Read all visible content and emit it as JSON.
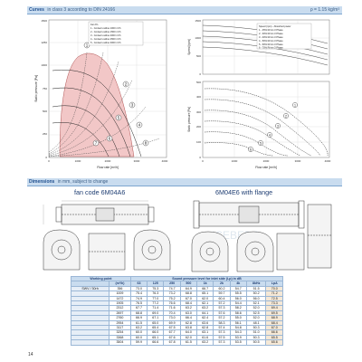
{
  "header": {
    "title": "Curves",
    "subtitle": "in class 3 according to DIN 24166",
    "right": "ρ = 1.15 kg/m³"
  },
  "left_chart": {
    "legend": [
      "Fan 8 L",
      "1 - Contact outline 1000 m³/h",
      "2 - Contact outline 1500 m³/h",
      "3 - Contact outline 2000 m³/h",
      "4 - Contact outline 2500 m³/h",
      "5 - Contact outline 3000 m³/h"
    ],
    "ylabel": "Static pressure [Pa]",
    "xlabel": "Flow rate [m³/h]",
    "xticks": [
      "0",
      "1000",
      "2000",
      "3000",
      "4000"
    ],
    "yticks": [
      "0",
      "250",
      "500",
      "750",
      "1000",
      "1250",
      "1500"
    ],
    "circles": [
      "1",
      "2",
      "3",
      "4",
      "5",
      "6",
      "7",
      "8"
    ]
  },
  "right_chart": {
    "legend": [
      "Speed (rpm) - Absorbed power",
      "1 - 25% R/min 3 Phase",
      "2 - 30% R/min 3 Phase",
      "3 - 40% R/min 3 Phase",
      "4 - 50% R/min 3 Phase",
      "5 - 60% R/min 3 Phase",
      "6 - 70% R/min 3 Phase"
    ],
    "ylabel_top": "Speed [rpm]",
    "ylabel_bottom": "Static pressure [Pa]",
    "xlabel": "Flow rate [m³/h]",
    "xticks": [
      "0",
      "1000",
      "2000",
      "3000",
      "4000"
    ],
    "yticks_top": [
      "0",
      "500",
      "1000",
      "1500"
    ],
    "yticks_bottom": [
      "0",
      "100",
      "200",
      "300",
      "400",
      "500"
    ],
    "curve_labels": [
      "1",
      "2",
      "3",
      "4",
      "5",
      "6"
    ]
  },
  "dimensions": {
    "title": "Dimensions",
    "subtitle": "in mm, subject to change",
    "fan_left": "fan code 6M04A6",
    "fan_right": "6M04E6 with flange",
    "watermark": "ICEBERG"
  },
  "table": {
    "head1": [
      "Working point",
      "Sound pressure level for inlet side (Lp) in dB"
    ],
    "head2": [
      "",
      "(m³/h)",
      "63",
      "125",
      "250",
      "500",
      "1k",
      "2k",
      "4k",
      "8kHz",
      "LpA"
    ],
    "rows": [
      [
        "SWV / 30rh",
        "356",
        "73.0",
        "75.3",
        "74.7",
        "64.9",
        "66.7",
        "60.2",
        "54.7",
        "51.5",
        "70.0"
      ],
      [
        "",
        "1009",
        "75.4",
        "76.3",
        "73.2",
        "68.8",
        "65.1",
        "59.7",
        "55.5",
        "50.2",
        "71.2"
      ],
      [
        "",
        "1472",
        "74.9",
        "77.0",
        "75.2",
        "67.0",
        "62.0",
        "60.4",
        "56.0",
        "56.0",
        "72.5"
      ],
      [
        "",
        "1905",
        "76.5",
        "77.2",
        "76.6",
        "68.4",
        "62.1",
        "57.2",
        "54.4",
        "52.1",
        "73.3"
      ],
      [
        "",
        "2312",
        "67.7",
        "71.4",
        "71.6",
        "63.2",
        "63.2",
        "57.3",
        "58.2",
        "52.0",
        "69.4"
      ],
      [
        "",
        "2697",
        "68.8",
        "69.0",
        "70.4",
        "63.0",
        "64.1",
        "57.6",
        "58.6",
        "52.5",
        "69.5"
      ],
      [
        "",
        "2760",
        "66.9",
        "67.1",
        "73.0",
        "66.4",
        "62.4",
        "57.2",
        "55.0",
        "52.0",
        "68.9"
      ],
      [
        "",
        "2954",
        "61.5",
        "65.0",
        "69.9",
        "62.8",
        "63.6",
        "58.3",
        "56.1",
        "48.1",
        "68.4"
      ],
      [
        "",
        "3117",
        "63.2",
        "65.4",
        "67.5",
        "63.8",
        "62.8",
        "57.4",
        "54.8",
        "50.3",
        "67.0"
      ],
      [
        "",
        "3254",
        "60.0",
        "66.0",
        "67.7",
        "64.0",
        "63.1",
        "57.3",
        "54.3",
        "51.0",
        "66.6"
      ],
      [
        "",
        "3368",
        "60.0",
        "65.1",
        "67.6",
        "62.0",
        "61.6",
        "57.5",
        "53.9",
        "50.3",
        "65.5"
      ],
      [
        "",
        "3504",
        "59.9",
        "66.6",
        "67.8",
        "61.5",
        "63.2",
        "57.3",
        "53.5",
        "50.5",
        "65.6"
      ]
    ]
  },
  "page_number": "14",
  "colors": {
    "band": "#c9dcef",
    "accent": "#1f4f8f",
    "pink_fill": "#f2c7c7"
  }
}
